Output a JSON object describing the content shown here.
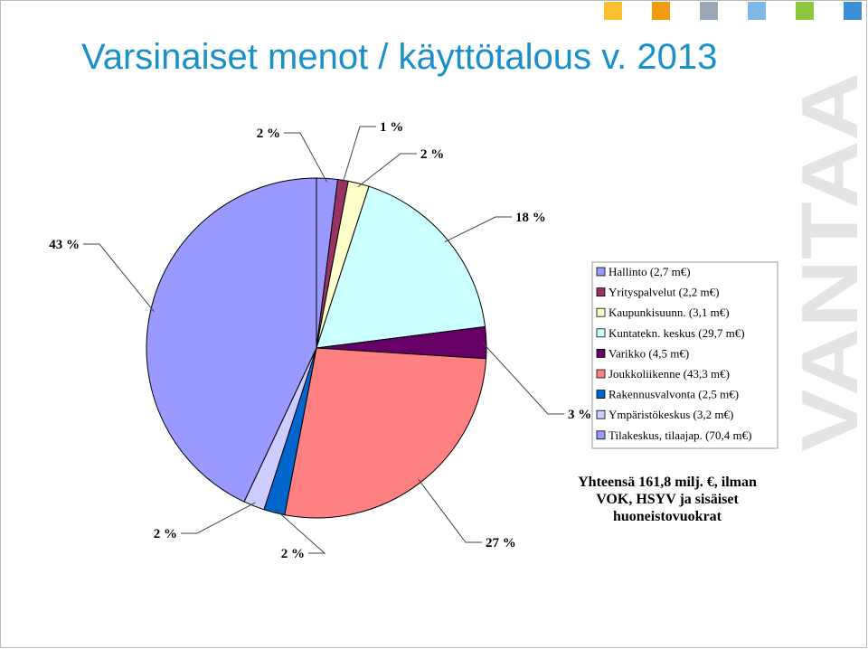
{
  "logo": "VANTAA",
  "chart_data": {
    "type": "pie",
    "title": "Varsinaiset menot / käyttötalous v. 2013",
    "categories": [
      "Hallinto (2,7 m€)",
      "Yrityspalvelut (2,2 m€)",
      "Kaupunkisuunn. (3,1 m€)",
      "Kuntatekn. keskus (29,7 m€)",
      "Varikko (4,5 m€)",
      "Joukkoliikenne (43,3 m€)",
      "Rakennusvalvonta (2,5 m€)",
      "Ympäristökeskus (3,2 m€)",
      "Tilakeskus, tilaajap. (70,4 m€)"
    ],
    "values": [
      2,
      1,
      2,
      18,
      3,
      27,
      2,
      2,
      43
    ],
    "value_labels": [
      "2 %",
      "1 %",
      "2 %",
      "18 %",
      "3 %",
      "27 %",
      "2 %",
      "2 %",
      "43 %"
    ],
    "colors": [
      "#9999ff",
      "#993366",
      "#ffffcc",
      "#ccffff",
      "#660066",
      "#ff8080",
      "#0066cc",
      "#ccccff",
      "#9999ff"
    ],
    "note": [
      "Yhteensä 161,8 milj. €, ilman",
      "VOK, HSYV ja sisäiset",
      "huoneistovuokrat"
    ]
  }
}
